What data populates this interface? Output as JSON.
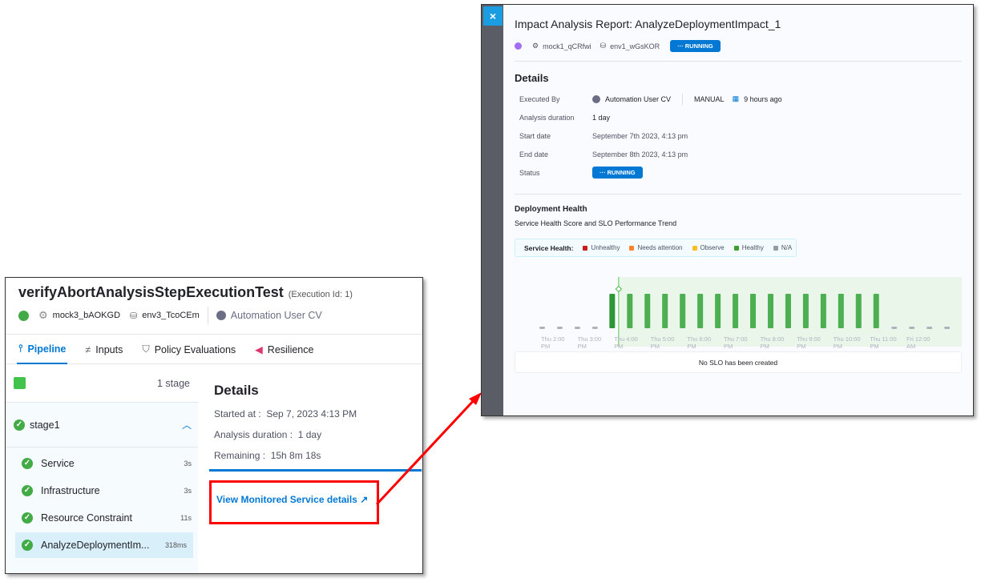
{
  "left": {
    "title": "verifyAbortAnalysisStepExecutionTest",
    "execution_id": "(Execution Id: 1)",
    "service": "mock3_bAOKGD",
    "environment": "env3_TcoCEm",
    "user": "Automation User CV",
    "tabs": [
      {
        "label": "Pipeline",
        "active": true
      },
      {
        "label": "Inputs"
      },
      {
        "label": "Policy Evaluations"
      },
      {
        "label": "Resilience"
      }
    ],
    "stage_count": "1 stage",
    "stage": "stage1",
    "steps": [
      {
        "label": "Service",
        "time": "3s"
      },
      {
        "label": "Infrastructure",
        "time": "3s"
      },
      {
        "label": "Resource Constraint",
        "time": "11s"
      },
      {
        "label": "AnalyzeDeploymentIm...",
        "time": "318ms",
        "selected": true
      }
    ],
    "details": {
      "title": "Details",
      "started_label": "Started at :",
      "started": "Sep 7, 2023 4:13 PM",
      "duration_label": "Analysis duration :",
      "duration": "1 day",
      "remaining_label": "Remaining :",
      "remaining": "15h 8m 18s",
      "progress": 0.99
    },
    "link": "View Monitored Service details"
  },
  "right": {
    "close": "×",
    "title": "Impact Analysis Report: AnalyzeDeploymentImpact_1",
    "service": "mock1_qCRfwi",
    "environment": "env1_wGsKOR",
    "status": "RUNNING",
    "details_title": "Details",
    "executed_by_label": "Executed By",
    "executed_by": "Automation User CV",
    "trigger": "MANUAL",
    "when": "9 hours ago",
    "duration_label": "Analysis duration",
    "duration": "1 day",
    "start_label": "Start date",
    "start": "September 7th 2023, 4:13 pm",
    "end_label": "End date",
    "end": "September 8th 2023, 4:13 pm",
    "status_label": "Status",
    "health_title": "Deployment Health",
    "health_subtitle": "Service Health Score and SLO Performance Trend",
    "legend_title": "Service Health:",
    "legend": [
      {
        "label": "Unhealthy",
        "color": "#c91d1d"
      },
      {
        "label": "Needs attention",
        "color": "#ff832b"
      },
      {
        "label": "Observe",
        "color": "#ffbc29"
      },
      {
        "label": "Healthy",
        "color": "#3e9e31"
      },
      {
        "label": "N/A",
        "color": "#9a9aa8"
      }
    ],
    "no_slo": "No SLO has been created"
  },
  "chart_data": {
    "type": "bar",
    "x_labels": [
      "Thu 2:00 PM",
      "Thu 3:00 PM",
      "Thu 4:00 PM",
      "Thu 5:00 PM",
      "Thu 6:00 PM",
      "Thu 7:00 PM",
      "Thu 8:00 PM",
      "Thu 9:00 PM",
      "Thu 10:00 PM",
      "Thu 11:00 PM",
      "Fri 12:00 AM"
    ],
    "slots": [
      "na",
      "na",
      "na",
      "na",
      "healthy",
      "healthy",
      "healthy",
      "healthy",
      "healthy",
      "healthy",
      "healthy",
      "healthy",
      "healthy",
      "healthy",
      "healthy",
      "healthy",
      "healthy",
      "healthy",
      "healthy",
      "healthy",
      "na",
      "na",
      "na",
      "na"
    ],
    "colors": {
      "healthy": "#4caf50",
      "healthy_current": "#2e9636",
      "na": "#b0b0ba",
      "analysis_window": "#eaf6ea",
      "marker": "#8ed68a"
    },
    "marker_label": "Thu 4:00 PM"
  }
}
